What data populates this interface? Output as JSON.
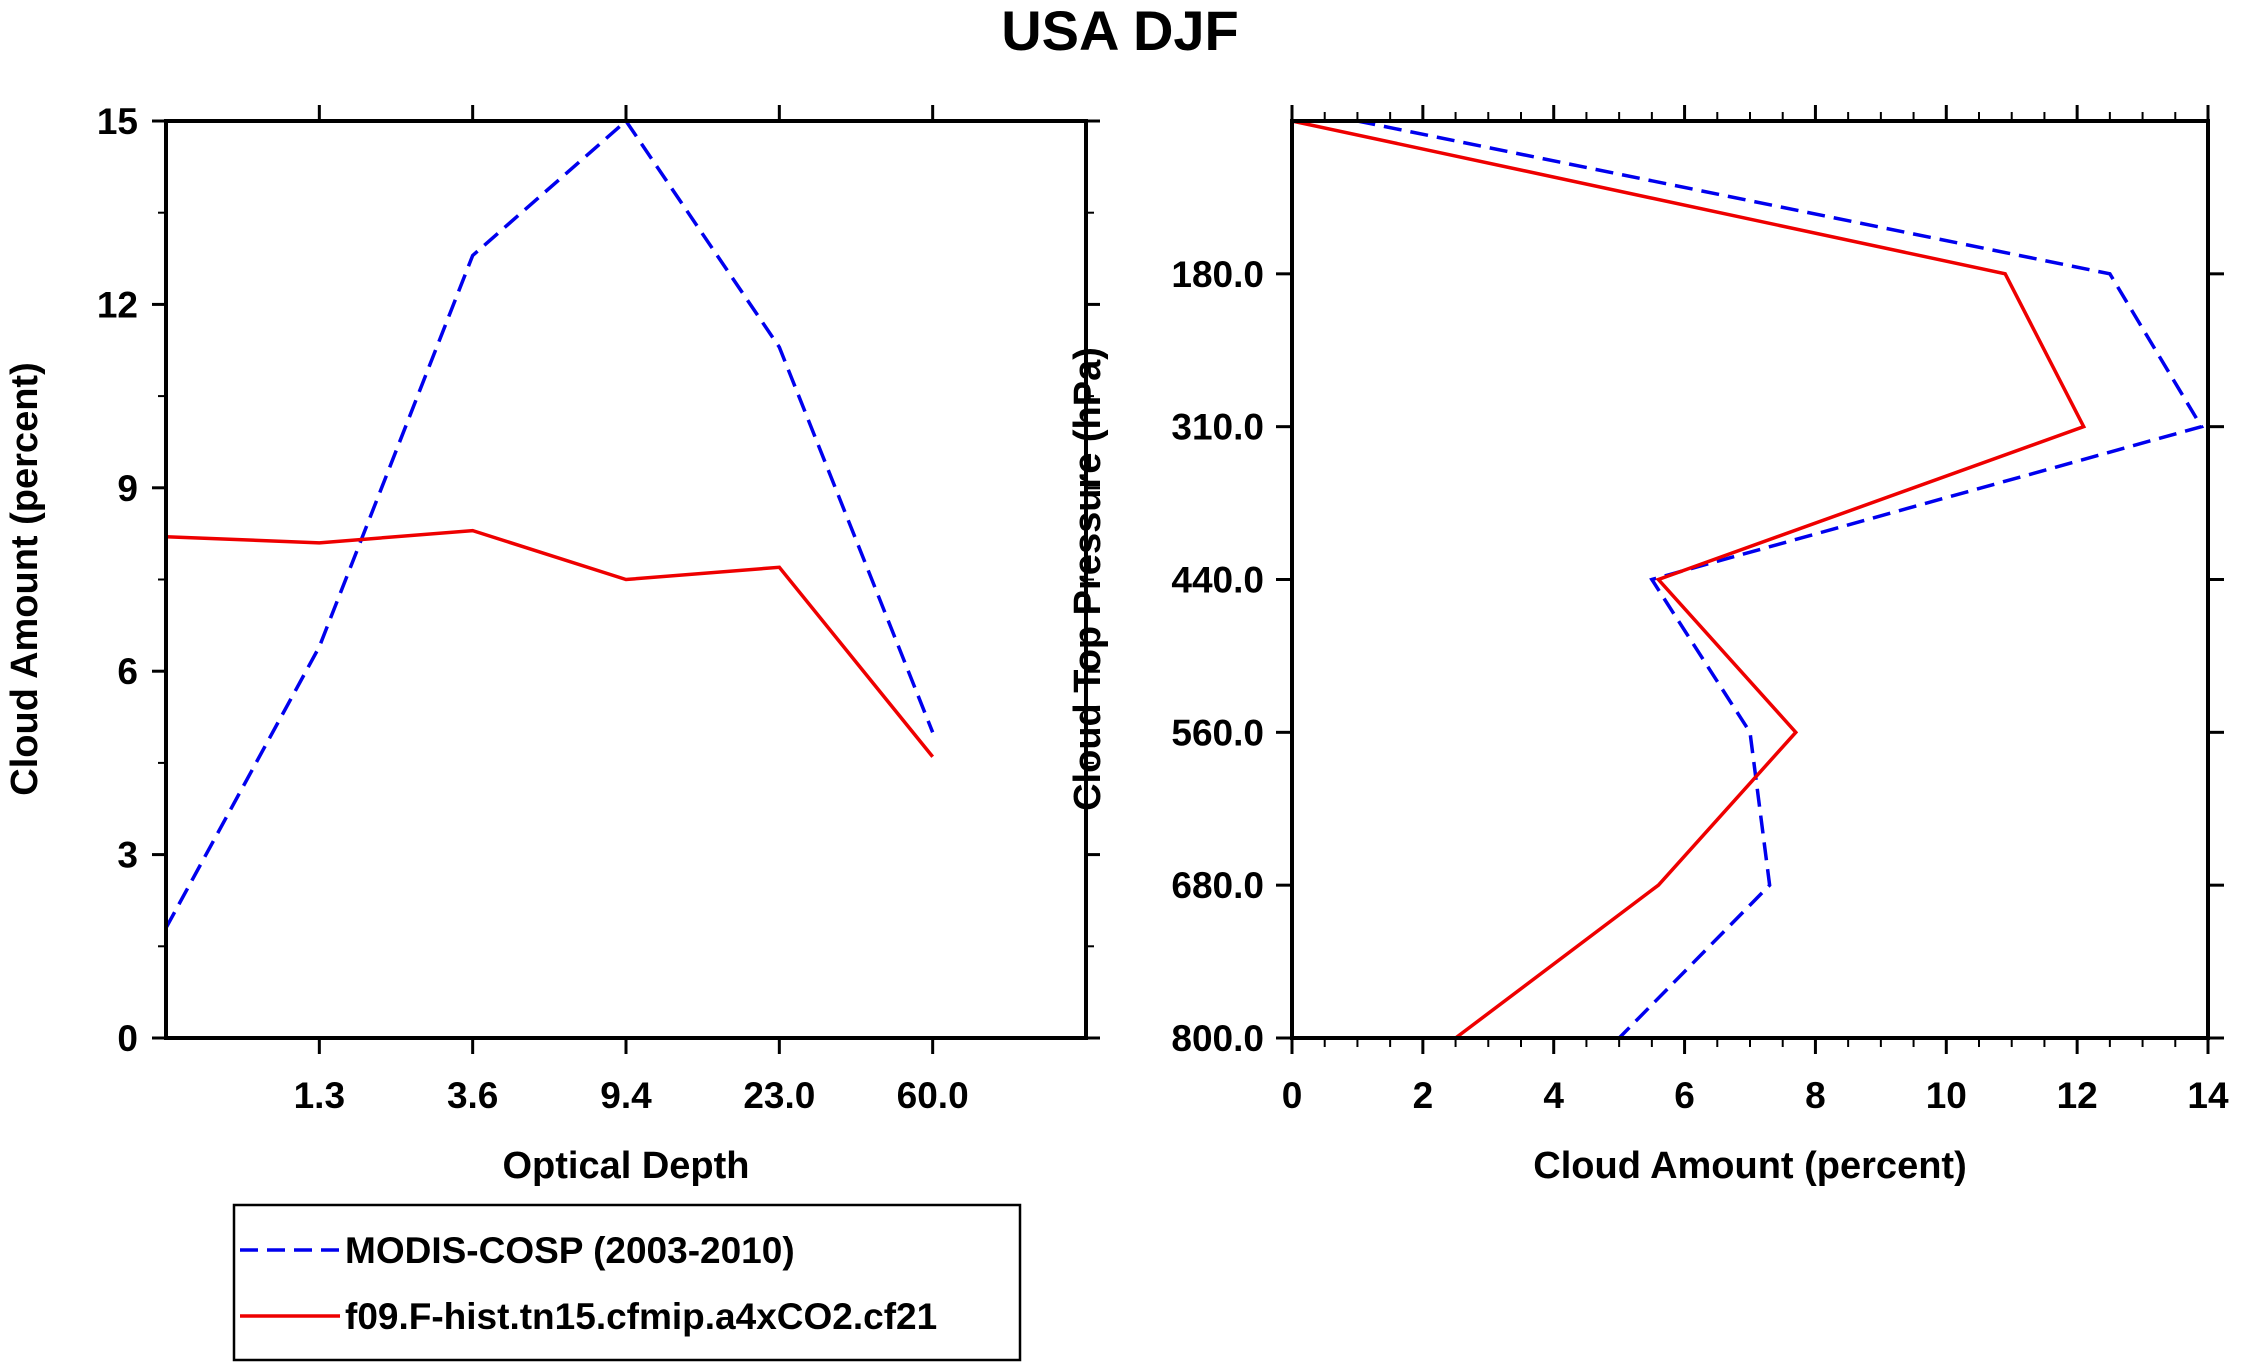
{
  "title": "USA DJF",
  "colors": {
    "obs": "#0000ee",
    "model": "#ee0000"
  },
  "legend": {
    "entries": [
      {
        "label": "MODIS-COSP (2003-2010)",
        "series": "obs",
        "dash": true
      },
      {
        "label": "f09.F-hist.tn15.cfmip.a4xCO2.cf21",
        "series": "model",
        "dash": false
      }
    ]
  },
  "chart_data": [
    {
      "type": "line",
      "title": "",
      "xlabel": "Optical Depth",
      "ylabel": "Cloud Amount (percent)",
      "x_bins": 6,
      "xticks": [
        "1.3",
        "3.6",
        "9.4",
        "23.0",
        "60.0"
      ],
      "yticks": [
        "0",
        "3",
        "6",
        "9",
        "12",
        "15"
      ],
      "ylim": [
        0,
        15
      ],
      "series": [
        {
          "name": "MODIS-COSP (2003-2010)",
          "key": "obs",
          "x": [
            0,
            1,
            2,
            3,
            4,
            5
          ],
          "values": [
            1.8,
            6.4,
            12.8,
            15.0,
            11.3,
            5.0
          ]
        },
        {
          "name": "f09.F-hist.tn15.cfmip.a4xCO2.cf21",
          "key": "model",
          "x": [
            0,
            1,
            2,
            3,
            4,
            5
          ],
          "values": [
            8.2,
            8.1,
            8.3,
            7.5,
            7.7,
            4.6
          ]
        }
      ]
    },
    {
      "type": "line",
      "title": "",
      "xlabel": "Cloud Amount (percent)",
      "ylabel": "Cloud Top Pressure (hPa)",
      "xlim": [
        0,
        14
      ],
      "xticks": [
        "0",
        "2",
        "4",
        "6",
        "8",
        "10",
        "12",
        "14"
      ],
      "y_bins": 6,
      "yticks": [
        "180.0",
        "310.0",
        "440.0",
        "560.0",
        "680.0",
        "800.0"
      ],
      "orientation": "vertical-profile",
      "series": [
        {
          "name": "MODIS-COSP (2003-2010)",
          "key": "obs",
          "y": [
            0,
            1,
            2,
            3,
            4,
            5,
            6
          ],
          "values": [
            1.0,
            12.5,
            13.9,
            5.5,
            7.0,
            7.3,
            5.0
          ]
        },
        {
          "name": "f09.F-hist.tn15.cfmip.a4xCO2.cf21",
          "key": "model",
          "y": [
            0,
            1,
            2,
            3,
            4,
            5,
            6
          ],
          "values": [
            0.0,
            10.9,
            12.1,
            5.6,
            7.7,
            5.6,
            2.5
          ]
        }
      ]
    }
  ]
}
